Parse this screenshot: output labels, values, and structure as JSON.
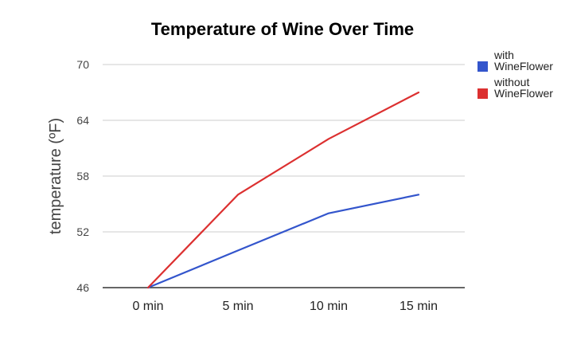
{
  "chart_data": {
    "type": "line",
    "title": "Temperature of Wine Over Time",
    "xlabel": "",
    "ylabel": "temperature (ºF)",
    "categories": [
      "0 min",
      "5 min",
      "10 min",
      "15 min"
    ],
    "yticks": [
      "70",
      "64",
      "58",
      "52",
      "46"
    ],
    "ylim": [
      46,
      70
    ],
    "grid": true,
    "legend": "right",
    "series": [
      {
        "name_lines": [
          "with",
          "WineFlower"
        ],
        "color": "#3355cc",
        "values": [
          46,
          50,
          54,
          56
        ]
      },
      {
        "name_lines": [
          "without",
          "WineFlower"
        ],
        "color": "#dc3030",
        "values": [
          46,
          56,
          62,
          67
        ]
      }
    ]
  }
}
